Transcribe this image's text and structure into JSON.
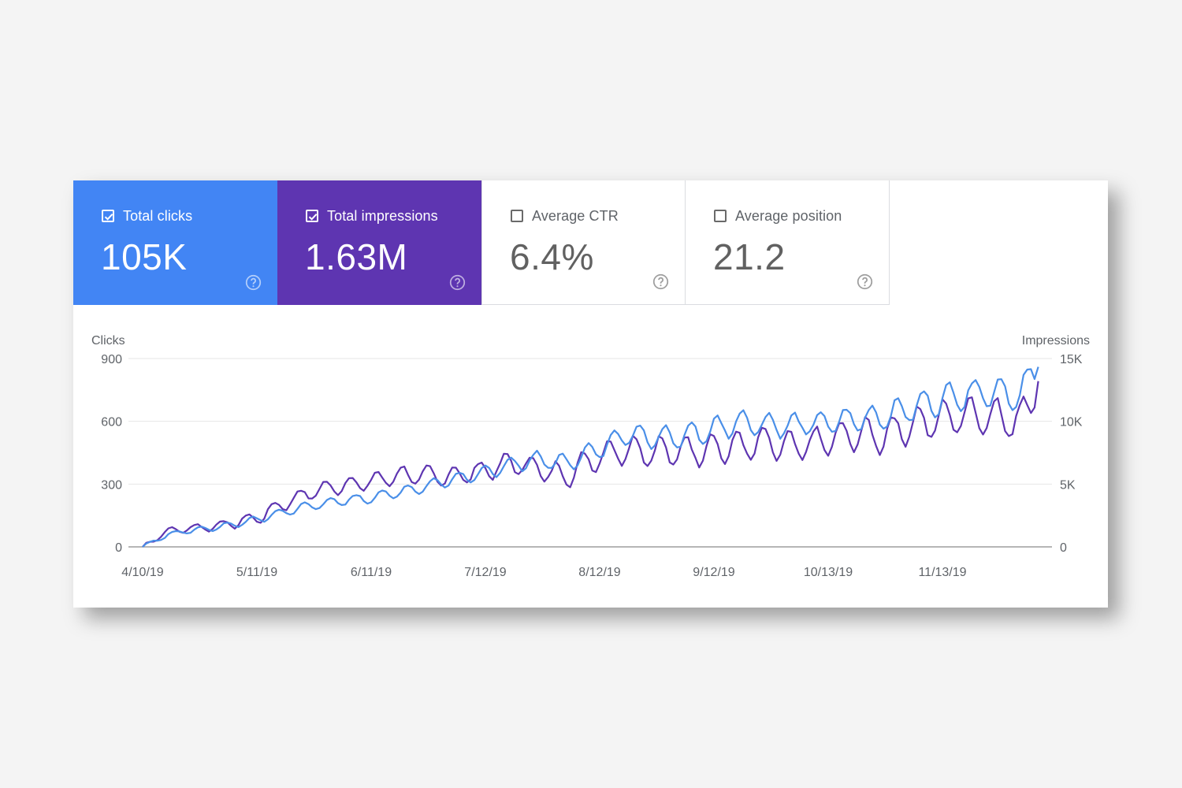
{
  "tiles": [
    {
      "label": "Total clicks",
      "value": "105K",
      "checked": true,
      "color": "#4285f4"
    },
    {
      "label": "Total impressions",
      "value": "1.63M",
      "checked": true,
      "color": "#5e35b1"
    },
    {
      "label": "Average CTR",
      "value": "6.4%",
      "checked": false
    },
    {
      "label": "Average position",
      "value": "21.2",
      "checked": false
    }
  ],
  "icons": {
    "checkbox": "checkbox-icon",
    "help": "help-circle-icon"
  },
  "chart_data": {
    "type": "line",
    "left_axis_label": "Clicks",
    "right_axis_label": "Impressions",
    "left_ticks": [
      "0",
      "300",
      "600",
      "900"
    ],
    "right_ticks": [
      "0",
      "5K",
      "10K",
      "15K"
    ],
    "left_range": [
      0,
      900
    ],
    "right_range": [
      0,
      15000
    ],
    "x_tick_labels": [
      "4/10/19",
      "5/11/19",
      "6/11/19",
      "7/12/19",
      "8/12/19",
      "9/12/19",
      "10/13/19",
      "11/13/19"
    ],
    "grid": true,
    "series": [
      {
        "name": "Clicks",
        "axis": "left",
        "color": "#4a8fe8",
        "anchors": [
          [
            "4/10/19",
            0
          ],
          [
            "4/17/19",
            60
          ],
          [
            "4/24/19",
            80
          ],
          [
            "5/1/19",
            95
          ],
          [
            "5/11/19",
            130
          ],
          [
            "5/18/19",
            165
          ],
          [
            "5/25/19",
            195
          ],
          [
            "6/1/19",
            215
          ],
          [
            "6/11/19",
            235
          ],
          [
            "6/18/19",
            260
          ],
          [
            "6/25/19",
            285
          ],
          [
            "7/2/19",
            320
          ],
          [
            "7/12/19",
            355
          ],
          [
            "7/19/19",
            390
          ],
          [
            "7/26/19",
            420
          ],
          [
            "8/2/19",
            400
          ],
          [
            "8/12/19",
            470
          ],
          [
            "8/19/19",
            545
          ],
          [
            "8/26/19",
            520
          ],
          [
            "9/2/19",
            525
          ],
          [
            "9/12/19",
            560
          ],
          [
            "9/19/19",
            600
          ],
          [
            "9/26/19",
            585
          ],
          [
            "10/3/19",
            580
          ],
          [
            "10/13/19",
            595
          ],
          [
            "10/20/19",
            610
          ],
          [
            "10/27/19",
            620
          ],
          [
            "11/3/19",
            655
          ],
          [
            "11/13/19",
            705
          ],
          [
            "11/20/19",
            735
          ],
          [
            "11/27/19",
            745
          ],
          [
            "12/4/19",
            720
          ],
          [
            "12/9/19",
            860
          ]
        ],
        "amplitude": [
          [
            "4/10/19",
            8
          ],
          [
            "5/11/19",
            18
          ],
          [
            "6/11/19",
            25
          ],
          [
            "7/12/19",
            30
          ],
          [
            "8/12/19",
            50
          ],
          [
            "9/12/19",
            60
          ],
          [
            "10/13/19",
            55
          ],
          [
            "11/13/19",
            70
          ],
          [
            "12/9/19",
            80
          ]
        ]
      },
      {
        "name": "Impressions",
        "axis": "right",
        "color": "#5e35b1",
        "anchors": [
          [
            "4/10/19",
            0
          ],
          [
            "4/17/19",
            1300
          ],
          [
            "4/24/19",
            1500
          ],
          [
            "5/1/19",
            1700
          ],
          [
            "5/11/19",
            2300
          ],
          [
            "5/18/19",
            3400
          ],
          [
            "5/25/19",
            4300
          ],
          [
            "6/1/19",
            4800
          ],
          [
            "6/11/19",
            5200
          ],
          [
            "6/18/19",
            5700
          ],
          [
            "6/25/19",
            5700
          ],
          [
            "7/2/19",
            5600
          ],
          [
            "7/12/19",
            6100
          ],
          [
            "7/19/19",
            6700
          ],
          [
            "7/26/19",
            6300
          ],
          [
            "8/2/19",
            5600
          ],
          [
            "8/12/19",
            7300
          ],
          [
            "8/19/19",
            7800
          ],
          [
            "8/26/19",
            7600
          ],
          [
            "9/2/19",
            7600
          ],
          [
            "9/12/19",
            7900
          ],
          [
            "9/19/19",
            8000
          ],
          [
            "9/26/19",
            8300
          ],
          [
            "10/3/19",
            7900
          ],
          [
            "10/13/19",
            8500
          ],
          [
            "10/20/19",
            9000
          ],
          [
            "10/27/19",
            8800
          ],
          [
            "11/3/19",
            9600
          ],
          [
            "11/13/19",
            10200
          ],
          [
            "11/20/19",
            10600
          ],
          [
            "11/27/19",
            10400
          ],
          [
            "12/4/19",
            10000
          ],
          [
            "12/9/19",
            13200
          ]
        ],
        "amplitude": [
          [
            "4/10/19",
            150
          ],
          [
            "5/11/19",
            500
          ],
          [
            "6/11/19",
            700
          ],
          [
            "7/12/19",
            800
          ],
          [
            "8/12/19",
            1100
          ],
          [
            "9/12/19",
            1300
          ],
          [
            "10/13/19",
            1200
          ],
          [
            "11/13/19",
            1500
          ],
          [
            "12/9/19",
            1600
          ]
        ]
      }
    ]
  }
}
